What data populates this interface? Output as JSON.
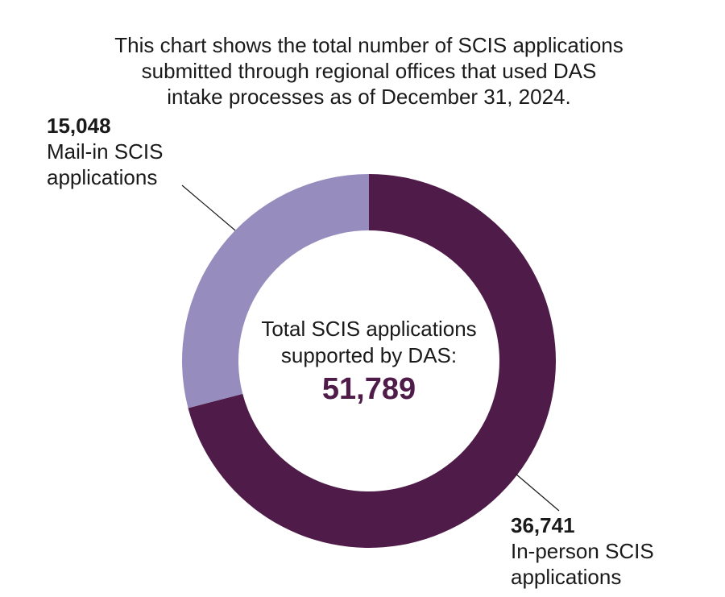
{
  "chart_data": {
    "type": "pie",
    "variant": "donut",
    "title_lines": [
      "This chart shows the total number of SCIS applications",
      "submitted through regional offices that used DAS",
      "intake processes as of December 31, 2024."
    ],
    "slices": [
      {
        "value": 36741,
        "value_label": "36,741",
        "label_lines": [
          "In-person SCIS",
          "applications"
        ],
        "color": "#4f1b48"
      },
      {
        "value": 15048,
        "value_label": "15,048",
        "label_lines": [
          "Mail-in SCIS",
          "applications"
        ],
        "color": "#968dbe"
      }
    ],
    "center": {
      "label_lines": [
        "Total SCIS applications",
        "supported by DAS:"
      ],
      "total_label": "51,789",
      "total": 51789,
      "total_color": "#4f1b48"
    },
    "leader_line_color": "#1a1a1a"
  }
}
